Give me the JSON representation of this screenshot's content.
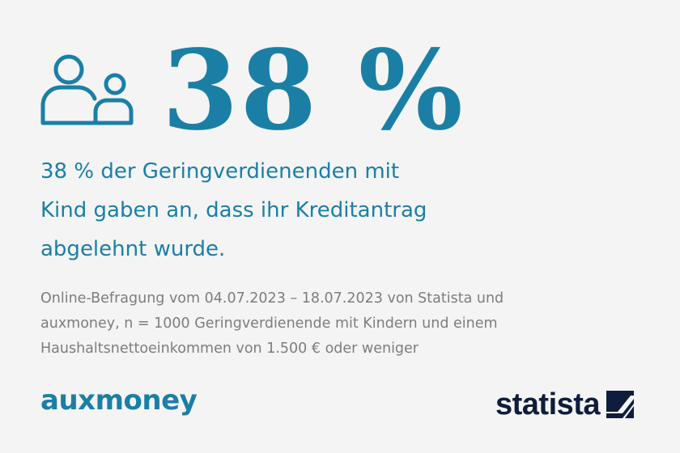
{
  "stat": {
    "value": "38 %"
  },
  "headline": {
    "lines": [
      "38 % der Geringverdienenden mit",
      "Kind gaben an, dass ihr Kreditantrag",
      "abgelehnt wurde."
    ]
  },
  "source": {
    "lines": [
      "Online-Befragung vom 04.07.2023 – 18.07.2023 von Statista und",
      "auxmoney, n = 1000 Geringverdienende mit Kindern und einem",
      "Haushaltsnettoeinkommen von 1.500 € oder weniger"
    ]
  },
  "logos": {
    "auxmoney": "auxmoney",
    "statista": "statista"
  },
  "icons": {
    "people": "parent-child-icon",
    "statista_mark": "statista-logo-mark"
  },
  "colors": {
    "accent": "#1b7fa5",
    "text_gray": "#7d7d7d",
    "statista_navy": "#0f1d3c",
    "background": "#f4f4f4"
  }
}
